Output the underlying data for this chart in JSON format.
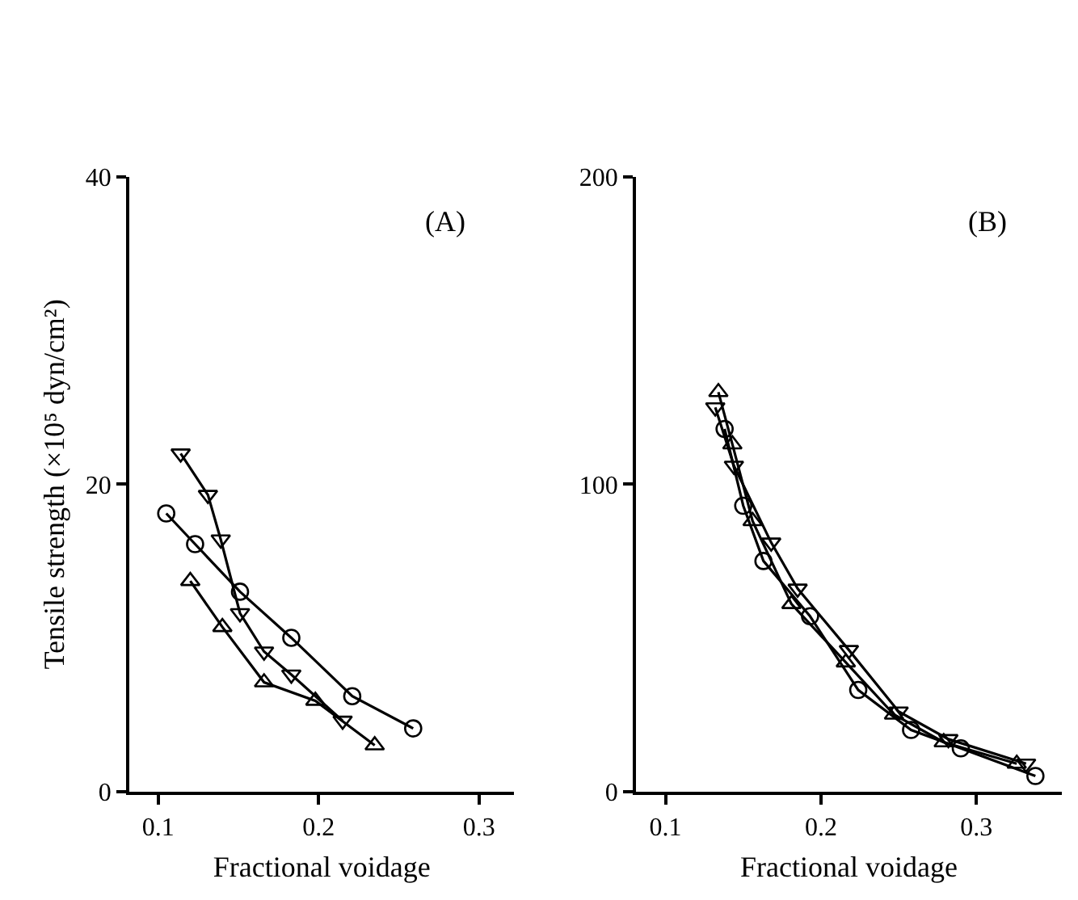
{
  "chart_data": [
    {
      "type": "line",
      "title": "(A)",
      "xlabel": "Fractional voidage",
      "ylabel": "Tensile strength (×10⁵ dyn/cm²)",
      "xlim": [
        0.082,
        0.322
      ],
      "xticks": [
        0.1,
        0.2,
        0.3
      ],
      "ylim": [
        0,
        40
      ],
      "yticks": [
        0,
        20,
        40
      ],
      "line_style": "solid",
      "series": [
        {
          "color": "#000000",
          "marker": "circle",
          "x": [
            0.105,
            0.123,
            0.151,
            0.183,
            0.221,
            0.259
          ],
          "values": [
            18.1,
            16.1,
            13.0,
            10.0,
            6.2,
            4.1
          ]
        },
        {
          "color": "#000000",
          "marker": "triangle-down",
          "x": [
            0.114,
            0.131,
            0.139,
            0.151,
            0.166,
            0.183,
            0.215
          ],
          "values": [
            22.0,
            19.3,
            16.4,
            11.6,
            9.1,
            7.6,
            4.6
          ]
        },
        {
          "color": "#000000",
          "marker": "triangle",
          "x": [
            0.12,
            0.14,
            0.166,
            0.198,
            0.235
          ],
          "values": [
            13.7,
            10.7,
            7.1,
            5.9,
            3.0
          ]
        }
      ]
    },
    {
      "type": "line",
      "title": "(B)",
      "xlabel": "Fractional voidage",
      "xlim": [
        0.081,
        0.355
      ],
      "xticks": [
        0.1,
        0.2,
        0.3
      ],
      "ylim": [
        0,
        200
      ],
      "yticks": [
        0,
        100,
        200
      ],
      "line_style": "solid",
      "series": [
        {
          "color": "#000000",
          "marker": "circle",
          "x": [
            0.138,
            0.15,
            0.163,
            0.193,
            0.224,
            0.258,
            0.29,
            0.338
          ],
          "values": [
            118,
            93,
            75,
            57,
            33,
            20,
            14,
            5
          ]
        },
        {
          "color": "#000000",
          "marker": "triangle",
          "x": [
            0.134,
            0.143,
            0.156,
            0.181,
            0.216,
            0.247,
            0.279,
            0.326
          ],
          "values": [
            130,
            113,
            88,
            61,
            42,
            25,
            16,
            9
          ]
        },
        {
          "color": "#000000",
          "marker": "triangle-down",
          "x": [
            0.132,
            0.144,
            0.168,
            0.185,
            0.218,
            0.25,
            0.282,
            0.332
          ],
          "values": [
            125,
            106,
            81,
            66,
            46,
            26,
            17,
            9
          ]
        }
      ]
    }
  ]
}
